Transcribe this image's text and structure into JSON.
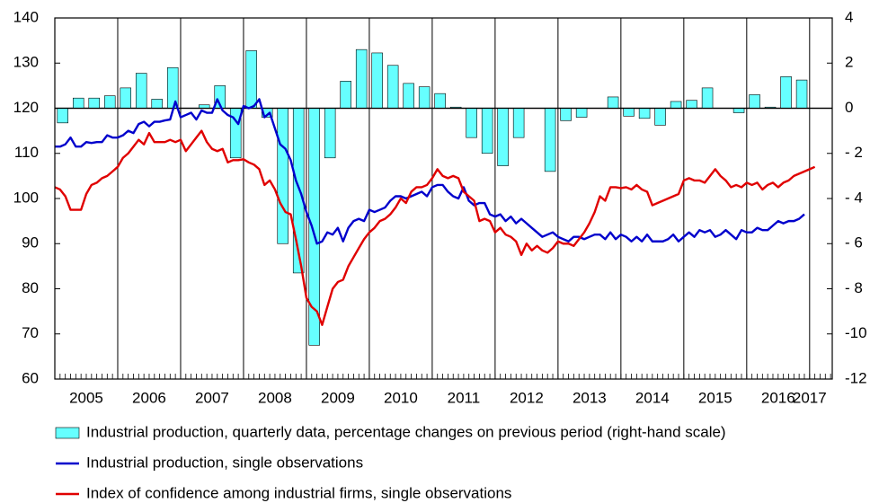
{
  "chart_data": {
    "type": "combo",
    "xlim": [
      2005,
      2017.36
    ],
    "xticks": [
      2005,
      2006,
      2007,
      2008,
      2009,
      2010,
      2011,
      2012,
      2013,
      2014,
      2015,
      2016,
      2017
    ],
    "ylim": [
      60,
      140
    ],
    "yticks": [
      60,
      70,
      80,
      90,
      100,
      110,
      120,
      130,
      140
    ],
    "y2lim": [
      -12,
      4
    ],
    "y2ticks": [
      {
        "value": -12,
        "label": "-12"
      },
      {
        "value": -10,
        "label": "-10"
      },
      {
        "value": -8,
        "label": "- 8"
      },
      {
        "value": -6,
        "label": "- 6"
      },
      {
        "value": -4,
        "label": "- 4"
      },
      {
        "value": -2,
        "label": "- 2"
      },
      0,
      2,
      4
    ],
    "grid": "x",
    "legend": "bottom",
    "series": [
      {
        "name": "Industrial production, quarterly data, percentage changes on previous period (right-hand scale)",
        "type": "bar",
        "axis": "y2",
        "color": "#66ffff",
        "x": [
          2005.125,
          2005.375,
          2005.625,
          2005.875,
          2006.125,
          2006.375,
          2006.625,
          2006.875,
          2007.125,
          2007.375,
          2007.625,
          2007.875,
          2008.125,
          2008.375,
          2008.625,
          2008.875,
          2009.125,
          2009.375,
          2009.625,
          2009.875,
          2010.125,
          2010.375,
          2010.625,
          2010.875,
          2011.125,
          2011.375,
          2011.625,
          2011.875,
          2012.125,
          2012.375,
          2012.625,
          2012.875,
          2013.125,
          2013.375,
          2013.625,
          2013.875,
          2014.125,
          2014.375,
          2014.625,
          2014.875,
          2015.125,
          2015.375,
          2015.625,
          2015.875,
          2016.125,
          2016.375,
          2016.625,
          2016.875
        ],
        "values": [
          -0.65,
          0.45,
          0.45,
          0.55,
          0.9,
          1.55,
          0.4,
          1.8,
          0,
          0.15,
          1.0,
          -2.2,
          2.55,
          -0.4,
          -6.0,
          -7.3,
          -10.5,
          -2.2,
          1.2,
          2.6,
          2.45,
          1.9,
          1.1,
          0.95,
          0.65,
          0.05,
          -1.3,
          -2.0,
          -2.55,
          -1.3,
          0,
          -2.8,
          -0.55,
          -0.4,
          0,
          0.5,
          -0.35,
          -0.45,
          -0.75,
          0.3,
          0.35,
          0.9,
          0,
          -0.2,
          0.6,
          0.05,
          1.4,
          1.25
        ]
      },
      {
        "name": "Industrial production, single observations",
        "type": "line",
        "color": "#0000cc",
        "x": [
          2005,
          2005.083,
          2005.167,
          2005.25,
          2005.333,
          2005.417,
          2005.5,
          2005.583,
          2005.667,
          2005.75,
          2005.833,
          2005.917,
          2006,
          2006.083,
          2006.167,
          2006.25,
          2006.333,
          2006.417,
          2006.5,
          2006.583,
          2006.667,
          2006.75,
          2006.833,
          2006.917,
          2007,
          2007.083,
          2007.167,
          2007.25,
          2007.333,
          2007.417,
          2007.5,
          2007.583,
          2007.667,
          2007.75,
          2007.833,
          2007.917,
          2008,
          2008.083,
          2008.167,
          2008.25,
          2008.333,
          2008.417,
          2008.5,
          2008.583,
          2008.667,
          2008.75,
          2008.833,
          2008.917,
          2009,
          2009.083,
          2009.167,
          2009.25,
          2009.333,
          2009.417,
          2009.5,
          2009.583,
          2009.667,
          2009.75,
          2009.833,
          2009.917,
          2010,
          2010.083,
          2010.167,
          2010.25,
          2010.333,
          2010.417,
          2010.5,
          2010.583,
          2010.667,
          2010.75,
          2010.833,
          2010.917,
          2011,
          2011.083,
          2011.167,
          2011.25,
          2011.333,
          2011.417,
          2011.5,
          2011.583,
          2011.667,
          2011.75,
          2011.833,
          2011.917,
          2012,
          2012.083,
          2012.167,
          2012.25,
          2012.333,
          2012.417,
          2012.5,
          2012.583,
          2012.667,
          2012.75,
          2012.833,
          2012.917,
          2013,
          2013.083,
          2013.167,
          2013.25,
          2013.333,
          2013.417,
          2013.5,
          2013.583,
          2013.667,
          2013.75,
          2013.833,
          2013.917,
          2014,
          2014.083,
          2014.167,
          2014.25,
          2014.333,
          2014.417,
          2014.5,
          2014.583,
          2014.667,
          2014.75,
          2014.833,
          2014.917,
          2015,
          2015.083,
          2015.167,
          2015.25,
          2015.333,
          2015.417,
          2015.5,
          2015.583,
          2015.667,
          2015.75,
          2015.833,
          2015.917,
          2016,
          2016.083,
          2016.167,
          2016.25,
          2016.333,
          2016.417,
          2016.5,
          2016.583,
          2016.667,
          2016.75,
          2016.833,
          2016.917
        ],
        "values": [
          111.5,
          111.5,
          112,
          113.5,
          111.5,
          111.5,
          112.5,
          112.3,
          112.5,
          112.5,
          114,
          113.5,
          113.5,
          114,
          115,
          114.5,
          116.5,
          117,
          116,
          117,
          117,
          117.3,
          117.5,
          121.5,
          118,
          118.5,
          119,
          117.5,
          119.5,
          119,
          119,
          122,
          119.5,
          118.5,
          118,
          116.5,
          120.5,
          120,
          120.5,
          122,
          118,
          119,
          115.5,
          112,
          111,
          108.5,
          104,
          101,
          97,
          94,
          90,
          90.5,
          92.5,
          92,
          93.5,
          90.5,
          93.5,
          95,
          95.5,
          95,
          97.5,
          97,
          97.5,
          98,
          99.5,
          100.5,
          100.5,
          100,
          100.5,
          101,
          101.5,
          100.5,
          102.5,
          103,
          103,
          101.5,
          100.5,
          100,
          102.5,
          99.5,
          98.5,
          99,
          99,
          96.5,
          96,
          96.5,
          95,
          96,
          94.5,
          95.5,
          94.5,
          93.5,
          92.5,
          91.5,
          92,
          92.5,
          91.5,
          91,
          90.5,
          91.5,
          91.5,
          91,
          91.5,
          92,
          92,
          91,
          92.5,
          91,
          92,
          91.5,
          90.5,
          91.5,
          90.5,
          92,
          90.5,
          90.5,
          90.5,
          91,
          92,
          90.5,
          91.5,
          92.5,
          91.5,
          93,
          92.5,
          93,
          91.5,
          92,
          93,
          92,
          91,
          93,
          92.5,
          92.5,
          93.5,
          93,
          93,
          94,
          95,
          94.5,
          95,
          95,
          95.5,
          96.5
        ]
      },
      {
        "name": "Index of confidence among industrial firms, single observations",
        "type": "line",
        "color": "#e00000",
        "x": [
          2005,
          2005.083,
          2005.167,
          2005.25,
          2005.333,
          2005.417,
          2005.5,
          2005.583,
          2005.667,
          2005.75,
          2005.833,
          2005.917,
          2006,
          2006.083,
          2006.167,
          2006.25,
          2006.333,
          2006.417,
          2006.5,
          2006.583,
          2006.667,
          2006.75,
          2006.833,
          2006.917,
          2007,
          2007.083,
          2007.167,
          2007.25,
          2007.333,
          2007.417,
          2007.5,
          2007.583,
          2007.667,
          2007.75,
          2007.833,
          2007.917,
          2008,
          2008.083,
          2008.167,
          2008.25,
          2008.333,
          2008.417,
          2008.5,
          2008.583,
          2008.667,
          2008.75,
          2008.833,
          2008.917,
          2009,
          2009.083,
          2009.167,
          2009.25,
          2009.333,
          2009.417,
          2009.5,
          2009.583,
          2009.667,
          2009.75,
          2009.833,
          2009.917,
          2010,
          2010.083,
          2010.167,
          2010.25,
          2010.333,
          2010.417,
          2010.5,
          2010.583,
          2010.667,
          2010.75,
          2010.833,
          2010.917,
          2011,
          2011.083,
          2011.167,
          2011.25,
          2011.333,
          2011.417,
          2011.5,
          2011.583,
          2011.667,
          2011.75,
          2011.833,
          2011.917,
          2012,
          2012.083,
          2012.167,
          2012.25,
          2012.333,
          2012.417,
          2012.5,
          2012.583,
          2012.667,
          2012.75,
          2012.833,
          2012.917,
          2013,
          2013.083,
          2013.167,
          2013.25,
          2013.333,
          2013.417,
          2013.5,
          2013.583,
          2013.667,
          2013.75,
          2013.833,
          2013.917,
          2014,
          2014.083,
          2014.167,
          2014.25,
          2014.333,
          2014.417,
          2014.5,
          2014.583,
          2014.667,
          2014.75,
          2014.833,
          2014.917,
          2015,
          2015.083,
          2015.167,
          2015.25,
          2015.333,
          2015.417,
          2015.5,
          2015.583,
          2015.667,
          2015.75,
          2015.833,
          2015.917,
          2016,
          2016.083,
          2016.167,
          2016.25,
          2016.333,
          2016.417,
          2016.5,
          2016.583,
          2016.667,
          2016.75,
          2016.833,
          2016.917,
          2017,
          2017.083
        ],
        "values": [
          102.5,
          102,
          100.5,
          97.5,
          97.5,
          97.5,
          101,
          103,
          103.5,
          104.5,
          105,
          106,
          107,
          109,
          110,
          111.5,
          113,
          112,
          114.5,
          112.5,
          112.5,
          112.5,
          113,
          112.5,
          113,
          110.5,
          112,
          113.5,
          115,
          112.5,
          111,
          110.5,
          111,
          108,
          108.5,
          108.5,
          108.7,
          108,
          107.5,
          106.5,
          103,
          104,
          102,
          99,
          97,
          96.5,
          91,
          85,
          78,
          76,
          75,
          72,
          76,
          80,
          81.5,
          82,
          85,
          87,
          89,
          91,
          92.5,
          93.5,
          95,
          95.5,
          96.5,
          98,
          100,
          99,
          101.5,
          102.5,
          102.5,
          103,
          104.5,
          106.5,
          105,
          104.5,
          105,
          104.5,
          101.5,
          100.5,
          99.5,
          95,
          95.5,
          95,
          92.5,
          93.5,
          92,
          91.5,
          90.5,
          87.5,
          90,
          88.5,
          89.5,
          88.5,
          88,
          89,
          90.5,
          90,
          90,
          89.5,
          91,
          92.5,
          94.5,
          97,
          100.5,
          99.5,
          102.5,
          102.5,
          102.3,
          102.5,
          102,
          103,
          102,
          101.5,
          98.5,
          99,
          99.5,
          100,
          100.5,
          101,
          104,
          104.5,
          104,
          104,
          103.5,
          105,
          106.5,
          105,
          104,
          102.5,
          103,
          102.5,
          103.5,
          103,
          103.5,
          102,
          103,
          103.5,
          102.5,
          103.5,
          104,
          105,
          105.5,
          106,
          106.5,
          107
        ]
      }
    ]
  }
}
